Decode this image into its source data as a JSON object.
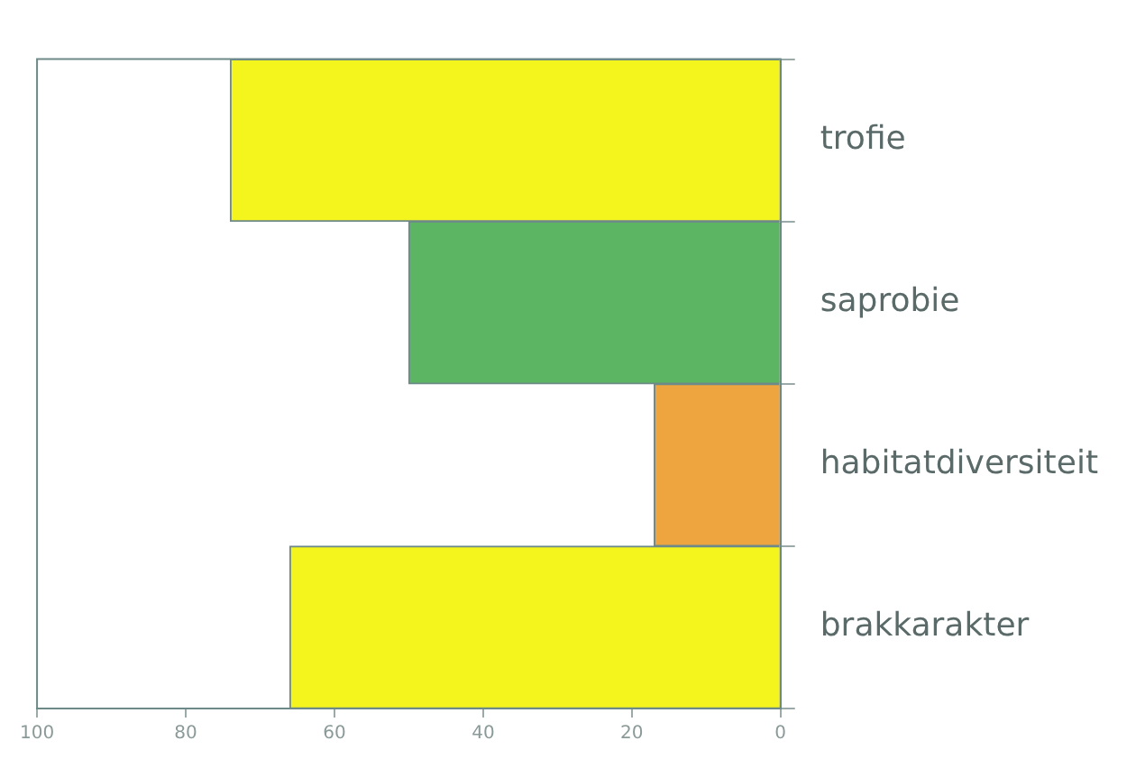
{
  "chart_data": {
    "type": "bar",
    "orientation": "horizontal",
    "categories": [
      "trofie",
      "saprobie",
      "habitatdiversiteit",
      "brakkarakter"
    ],
    "values": [
      74,
      50,
      17,
      66
    ],
    "colors": [
      "#f5f51e",
      "#5cb563",
      "#eea540",
      "#f5f51e"
    ],
    "xlim": [
      100,
      0
    ],
    "xticks": [
      100,
      80,
      60,
      40,
      20,
      0
    ],
    "grid": false,
    "legend": false
  }
}
